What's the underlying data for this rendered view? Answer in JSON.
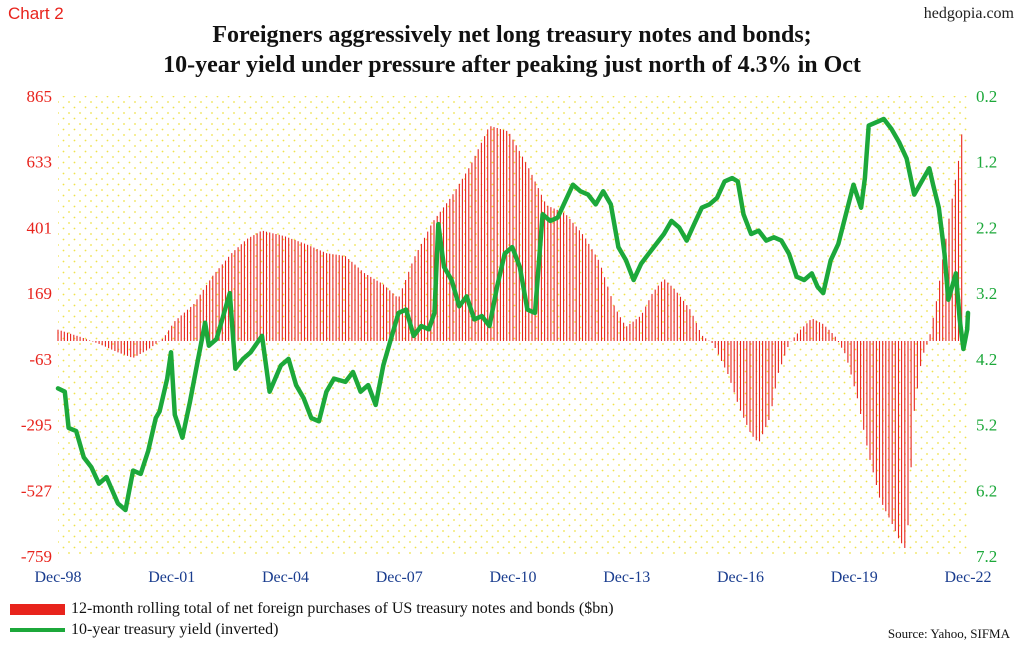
{
  "header": {
    "chart_label": "Chart 2",
    "brand": "hedgopia.com",
    "title_line1": "Foreigners aggressively net long treasury notes and bonds;",
    "title_line2": "10-year yield under pressure after peaking just north of 4.3% in Oct"
  },
  "footer": {
    "source": "Source: Yahoo, SIFMA"
  },
  "colors": {
    "bars": "#e8231c",
    "line": "#1ca83a",
    "left_axis_text": "#e8231c",
    "right_axis_text": "#1ca83a",
    "x_axis_text": "#1a3d8f",
    "background_dots": "#f0e24a"
  },
  "chart_data": {
    "type": "bar+line",
    "x_tick_labels": [
      "Dec-98",
      "Dec-01",
      "Dec-04",
      "Dec-07",
      "Dec-10",
      "Dec-13",
      "Dec-16",
      "Dec-19",
      "Dec-22"
    ],
    "x_range": [
      1998.92,
      2022.92
    ],
    "left_axis": {
      "ticks": [
        865,
        633,
        401,
        169,
        -63,
        -295,
        -527,
        -759
      ],
      "range": [
        -759,
        865
      ]
    },
    "right_axis": {
      "ticks": [
        "0.2",
        "1.2",
        "2.2",
        "3.2",
        "4.2",
        "5.2",
        "6.2",
        "7.2"
      ],
      "range": [
        0.2,
        7.2
      ],
      "inverted": true
    },
    "grid": false,
    "legend_position": "bottom-left",
    "series": [
      {
        "name": "12-month rolling total of net foreign purchases of US treasury notes and bonds ($bn)",
        "type": "bar",
        "axis": "left",
        "points": [
          [
            1998.92,
            40
          ],
          [
            1999.5,
            15
          ],
          [
            2000.0,
            -10
          ],
          [
            2000.5,
            -40
          ],
          [
            2000.9,
            -60
          ],
          [
            2001.3,
            -30
          ],
          [
            2001.7,
            10
          ],
          [
            2002.0,
            70
          ],
          [
            2002.5,
            130
          ],
          [
            2003.0,
            230
          ],
          [
            2003.5,
            310
          ],
          [
            2003.9,
            360
          ],
          [
            2004.3,
            390
          ],
          [
            2004.9,
            370
          ],
          [
            2005.5,
            340
          ],
          [
            2006.0,
            310
          ],
          [
            2006.5,
            300
          ],
          [
            2007.0,
            240
          ],
          [
            2007.5,
            200
          ],
          [
            2007.9,
            150
          ],
          [
            2008.3,
            290
          ],
          [
            2008.8,
            420
          ],
          [
            2009.3,
            510
          ],
          [
            2009.8,
            620
          ],
          [
            2010.3,
            760
          ],
          [
            2010.8,
            740
          ],
          [
            2011.3,
            620
          ],
          [
            2011.8,
            480
          ],
          [
            2012.3,
            450
          ],
          [
            2012.8,
            370
          ],
          [
            2013.2,
            280
          ],
          [
            2013.6,
            120
          ],
          [
            2013.9,
            50
          ],
          [
            2014.3,
            90
          ],
          [
            2014.6,
            170
          ],
          [
            2014.9,
            220
          ],
          [
            2015.2,
            180
          ],
          [
            2015.6,
            110
          ],
          [
            2015.9,
            20
          ],
          [
            2016.2,
            -10
          ],
          [
            2016.6,
            -120
          ],
          [
            2016.9,
            -240
          ],
          [
            2017.2,
            -330
          ],
          [
            2017.4,
            -360
          ],
          [
            2017.7,
            -270
          ],
          [
            2017.9,
            -120
          ],
          [
            2018.2,
            -10
          ],
          [
            2018.5,
            40
          ],
          [
            2018.8,
            80
          ],
          [
            2019.1,
            60
          ],
          [
            2019.4,
            20
          ],
          [
            2019.7,
            -50
          ],
          [
            2020.0,
            -200
          ],
          [
            2020.3,
            -400
          ],
          [
            2020.6,
            -560
          ],
          [
            2020.9,
            -640
          ],
          [
            2021.1,
            -700
          ],
          [
            2021.3,
            -740
          ],
          [
            2021.5,
            -250
          ],
          [
            2021.7,
            -60
          ],
          [
            2021.9,
            10
          ],
          [
            2022.1,
            150
          ],
          [
            2022.3,
            330
          ],
          [
            2022.5,
            500
          ],
          [
            2022.7,
            660
          ],
          [
            2022.8,
            790
          ]
        ]
      },
      {
        "name": "10-year treasury yield (inverted)",
        "type": "line",
        "axis": "right",
        "points": [
          [
            1998.92,
            4.65
          ],
          [
            1999.1,
            4.7
          ],
          [
            1999.2,
            5.25
          ],
          [
            1999.4,
            5.3
          ],
          [
            1999.6,
            5.7
          ],
          [
            1999.8,
            5.85
          ],
          [
            2000.0,
            6.1
          ],
          [
            2000.2,
            6.0
          ],
          [
            2000.5,
            6.4
          ],
          [
            2000.7,
            6.5
          ],
          [
            2000.9,
            5.9
          ],
          [
            2001.1,
            5.95
          ],
          [
            2001.3,
            5.6
          ],
          [
            2001.5,
            5.1
          ],
          [
            2001.6,
            5.0
          ],
          [
            2001.8,
            4.5
          ],
          [
            2001.9,
            4.1
          ],
          [
            2002.0,
            5.05
          ],
          [
            2002.2,
            5.4
          ],
          [
            2002.4,
            4.85
          ],
          [
            2002.6,
            4.25
          ],
          [
            2002.8,
            3.65
          ],
          [
            2002.9,
            4.0
          ],
          [
            2003.1,
            3.9
          ],
          [
            2003.3,
            3.5
          ],
          [
            2003.45,
            3.2
          ],
          [
            2003.6,
            4.35
          ],
          [
            2003.8,
            4.2
          ],
          [
            2004.0,
            4.1
          ],
          [
            2004.3,
            3.85
          ],
          [
            2004.5,
            4.7
          ],
          [
            2004.8,
            4.3
          ],
          [
            2005.0,
            4.2
          ],
          [
            2005.2,
            4.6
          ],
          [
            2005.4,
            4.8
          ],
          [
            2005.6,
            5.1
          ],
          [
            2005.8,
            5.15
          ],
          [
            2006.0,
            4.7
          ],
          [
            2006.2,
            4.5
          ],
          [
            2006.5,
            4.55
          ],
          [
            2006.7,
            4.4
          ],
          [
            2006.9,
            4.7
          ],
          [
            2007.1,
            4.6
          ],
          [
            2007.3,
            4.9
          ],
          [
            2007.5,
            4.3
          ],
          [
            2007.7,
            3.9
          ],
          [
            2007.9,
            3.5
          ],
          [
            2008.1,
            3.45
          ],
          [
            2008.3,
            3.85
          ],
          [
            2008.5,
            3.7
          ],
          [
            2008.7,
            3.75
          ],
          [
            2008.85,
            3.5
          ],
          [
            2008.95,
            2.15
          ],
          [
            2009.1,
            2.8
          ],
          [
            2009.3,
            3.0
          ],
          [
            2009.5,
            3.4
          ],
          [
            2009.7,
            3.25
          ],
          [
            2009.9,
            3.6
          ],
          [
            2010.1,
            3.55
          ],
          [
            2010.3,
            3.7
          ],
          [
            2010.5,
            3.1
          ],
          [
            2010.7,
            2.6
          ],
          [
            2010.9,
            2.5
          ],
          [
            2011.1,
            2.8
          ],
          [
            2011.3,
            3.45
          ],
          [
            2011.5,
            3.5
          ],
          [
            2011.7,
            2.0
          ],
          [
            2011.9,
            2.1
          ],
          [
            2012.1,
            2.05
          ],
          [
            2012.3,
            1.8
          ],
          [
            2012.5,
            1.55
          ],
          [
            2012.7,
            1.65
          ],
          [
            2012.9,
            1.7
          ],
          [
            2013.1,
            1.85
          ],
          [
            2013.3,
            1.65
          ],
          [
            2013.5,
            1.85
          ],
          [
            2013.7,
            2.5
          ],
          [
            2013.9,
            2.7
          ],
          [
            2014.1,
            3.0
          ],
          [
            2014.3,
            2.75
          ],
          [
            2014.5,
            2.6
          ],
          [
            2014.7,
            2.45
          ],
          [
            2014.9,
            2.3
          ],
          [
            2015.1,
            2.1
          ],
          [
            2015.3,
            2.2
          ],
          [
            2015.5,
            2.4
          ],
          [
            2015.7,
            2.15
          ],
          [
            2015.9,
            1.9
          ],
          [
            2016.1,
            1.85
          ],
          [
            2016.3,
            1.75
          ],
          [
            2016.5,
            1.5
          ],
          [
            2016.7,
            1.45
          ],
          [
            2016.85,
            1.5
          ],
          [
            2017.0,
            2.0
          ],
          [
            2017.2,
            2.3
          ],
          [
            2017.4,
            2.25
          ],
          [
            2017.6,
            2.4
          ],
          [
            2017.8,
            2.35
          ],
          [
            2018.0,
            2.4
          ],
          [
            2018.2,
            2.6
          ],
          [
            2018.4,
            2.95
          ],
          [
            2018.6,
            3.0
          ],
          [
            2018.8,
            2.9
          ],
          [
            2018.95,
            3.1
          ],
          [
            2019.1,
            3.2
          ],
          [
            2019.3,
            2.7
          ],
          [
            2019.5,
            2.45
          ],
          [
            2019.7,
            2.0
          ],
          [
            2019.9,
            1.55
          ],
          [
            2020.1,
            1.9
          ],
          [
            2020.2,
            1.45
          ],
          [
            2020.3,
            0.65
          ],
          [
            2020.5,
            0.6
          ],
          [
            2020.7,
            0.55
          ],
          [
            2020.9,
            0.7
          ],
          [
            2021.1,
            0.9
          ],
          [
            2021.3,
            1.15
          ],
          [
            2021.5,
            1.7
          ],
          [
            2021.7,
            1.5
          ],
          [
            2021.9,
            1.3
          ],
          [
            2022.0,
            1.55
          ],
          [
            2022.15,
            1.9
          ],
          [
            2022.3,
            2.6
          ],
          [
            2022.4,
            3.3
          ],
          [
            2022.5,
            3.1
          ],
          [
            2022.6,
            2.9
          ],
          [
            2022.7,
            3.6
          ],
          [
            2022.8,
            4.05
          ],
          [
            2022.9,
            3.75
          ],
          [
            2022.92,
            3.5
          ]
        ]
      }
    ]
  }
}
